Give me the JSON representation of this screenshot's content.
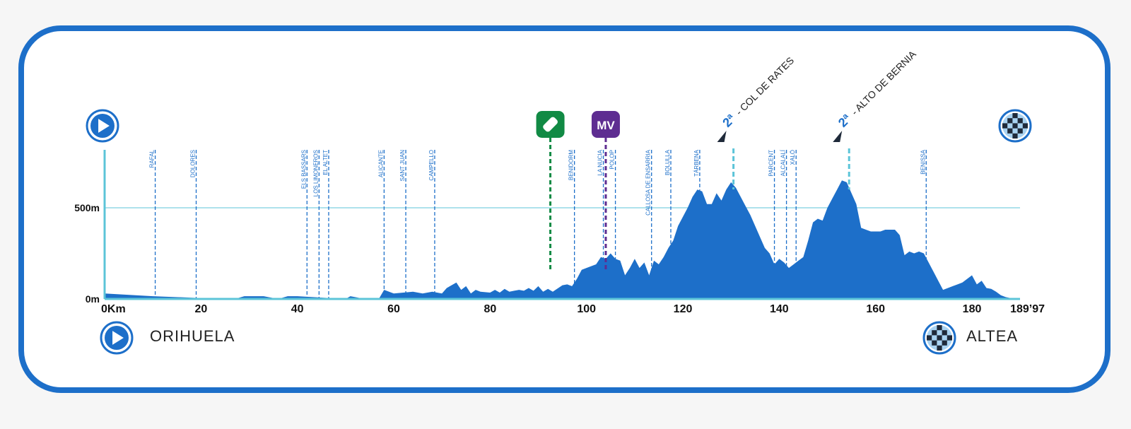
{
  "chart_data": {
    "type": "area",
    "xlim": [
      0,
      189.97
    ],
    "ylim": [
      0,
      700
    ],
    "x_ticks": [
      {
        "value": 0,
        "label": "0Km"
      },
      {
        "value": 20,
        "label": "20"
      },
      {
        "value": 40,
        "label": "40"
      },
      {
        "value": 60,
        "label": "60"
      },
      {
        "value": 80,
        "label": "80"
      },
      {
        "value": 100,
        "label": "100"
      },
      {
        "value": 120,
        "label": "120"
      },
      {
        "value": 140,
        "label": "140"
      },
      {
        "value": 160,
        "label": "160"
      },
      {
        "value": 180,
        "label": "180"
      },
      {
        "value": 189.97,
        "label": "189’97"
      }
    ],
    "y_ticks": [
      {
        "value": 0,
        "label": "0m"
      },
      {
        "value": 500,
        "label": "500m"
      }
    ],
    "grid": {
      "y_gridline_at": 500
    },
    "elevation": {
      "x": [
        0,
        10,
        20,
        27,
        29,
        33,
        36,
        38,
        40,
        50,
        51,
        54,
        57,
        58,
        60,
        64,
        66,
        68,
        70,
        71,
        73,
        74,
        75,
        76,
        77,
        78,
        80,
        81,
        82,
        83,
        84,
        85,
        86,
        87,
        88,
        89,
        90,
        91,
        92,
        93,
        95,
        96,
        97,
        98,
        99,
        100,
        102,
        103,
        104,
        105,
        106,
        107,
        108,
        109,
        110,
        111,
        112,
        113,
        114,
        115,
        116,
        117,
        118,
        119,
        120,
        121,
        122,
        123,
        124,
        125,
        126,
        127,
        128,
        129,
        130,
        131,
        132,
        133,
        134,
        135,
        136,
        137,
        138,
        139,
        140,
        141,
        142,
        143,
        144,
        145,
        146,
        147,
        148,
        149,
        150,
        151,
        152,
        153,
        154,
        155,
        156,
        157,
        158,
        159,
        160,
        161,
        162,
        163,
        164,
        165,
        166,
        167,
        168,
        169,
        170,
        171,
        172,
        173,
        174,
        175,
        176,
        177,
        178,
        179,
        180,
        181,
        182,
        183,
        184,
        185,
        186,
        187,
        188,
        189.97
      ],
      "y": [
        30,
        15,
        5,
        0,
        15,
        15,
        0,
        15,
        15,
        0,
        15,
        0,
        5,
        50,
        30,
        40,
        30,
        40,
        30,
        60,
        90,
        50,
        70,
        30,
        50,
        40,
        35,
        50,
        35,
        55,
        40,
        45,
        50,
        45,
        60,
        45,
        70,
        40,
        55,
        40,
        75,
        80,
        70,
        110,
        160,
        170,
        190,
        230,
        220,
        250,
        220,
        210,
        130,
        170,
        220,
        170,
        200,
        130,
        210,
        190,
        230,
        280,
        320,
        400,
        450,
        500,
        560,
        600,
        590,
        520,
        520,
        580,
        540,
        600,
        640,
        610,
        560,
        510,
        460,
        400,
        340,
        280,
        250,
        190,
        220,
        200,
        170,
        190,
        210,
        230,
        320,
        420,
        440,
        430,
        500,
        550,
        600,
        650,
        640,
        580,
        520,
        390,
        380,
        370,
        370,
        370,
        380,
        380,
        380,
        350,
        240,
        260,
        250,
        260,
        250,
        200,
        150,
        100,
        50,
        60,
        70,
        80,
        90,
        110,
        130,
        80,
        100,
        60,
        55,
        40,
        20,
        10,
        5,
        0
      ]
    },
    "towns": [
      {
        "km": 10.5,
        "name": "RAFAL"
      },
      {
        "km": 19,
        "name": "DOLORES"
      },
      {
        "km": 42,
        "name": "ELS BASSARS"
      },
      {
        "km": 44.5,
        "name": "LOS LIMONEROS"
      },
      {
        "km": 46.5,
        "name": "EL ALTET"
      },
      {
        "km": 58,
        "name": "ALICANTE"
      },
      {
        "km": 62.5,
        "name": "SANT JUAN"
      },
      {
        "km": 68.5,
        "name": "CAMPELLO"
      },
      {
        "km": 97.5,
        "name": "BENIDORM"
      },
      {
        "km": 103.5,
        "name": "LA NUCIA"
      },
      {
        "km": 106,
        "name": "POLOP"
      },
      {
        "km": 113.5,
        "name": "CALLOSA DE ENSARRIA"
      },
      {
        "km": 117.5,
        "name": "BOLULLA"
      },
      {
        "km": 123.5,
        "name": "TÁRBENA"
      },
      {
        "km": 139,
        "name": "PARCENT"
      },
      {
        "km": 141.5,
        "name": "ALCALALÍ"
      },
      {
        "km": 143.5,
        "name": "XALÓ"
      },
      {
        "km": 170.5,
        "name": "BENISSA"
      }
    ],
    "climbs": [
      {
        "km": 130.5,
        "category": "2ª",
        "name": "- COL DE RATES"
      },
      {
        "km": 154.5,
        "category": "2ª",
        "name": "- ALTO DE BERNIA"
      }
    ],
    "markers": [
      {
        "km": 92.5,
        "label": "",
        "icon": "bottle-icon",
        "color": "#118a44"
      },
      {
        "km": 104,
        "label": "MV",
        "icon": "",
        "color": "#5e2d91"
      }
    ],
    "colors": {
      "profile": "#1d6fc9",
      "axis": "#5cc4d8",
      "climb_line": "#5cc4d8",
      "town_line": "#1d6fc9"
    }
  },
  "start": {
    "name": "ORIHUELA",
    "icon": "play-icon"
  },
  "finish": {
    "name": "ALTEA",
    "icon": "checkered-flag-icon"
  },
  "frame_color": "#1d6fc9"
}
